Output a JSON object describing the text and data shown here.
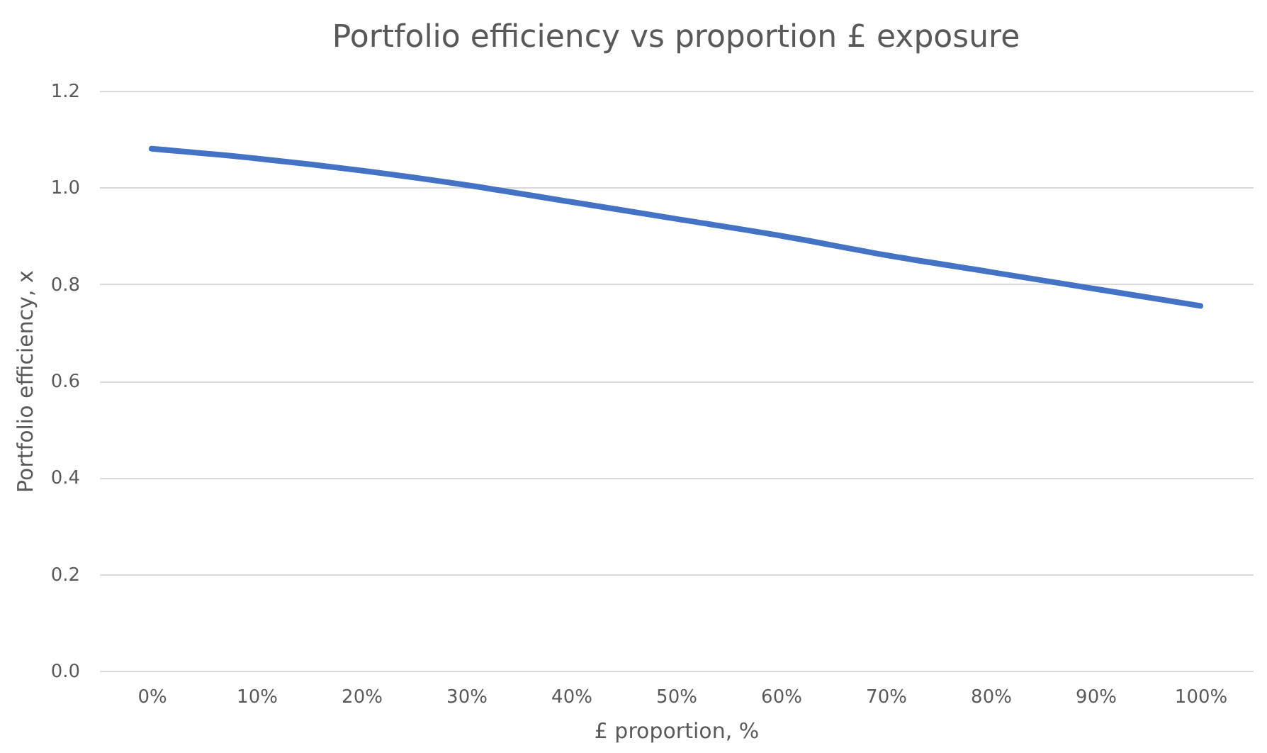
{
  "chart_data": {
    "type": "line",
    "title": "Portfolio efficiency vs proportion £ exposure",
    "xlabel": "£ proportion, %",
    "ylabel": "Portfolio efficiency, x",
    "categories": [
      "0%",
      "10%",
      "20%",
      "30%",
      "40%",
      "50%",
      "60%",
      "70%",
      "80%",
      "90%",
      "100%"
    ],
    "series": [
      {
        "color": "#4472c4",
        "values": [
          1.08,
          1.06,
          1.035,
          1.005,
          0.97,
          0.935,
          0.9,
          0.86,
          0.825,
          0.79,
          0.755
        ]
      }
    ],
    "ylim": [
      0,
      1.2
    ],
    "yticks": [
      {
        "value": 0,
        "label": "0.0"
      },
      {
        "value": 0.2,
        "label": "0.2"
      },
      {
        "value": 0.4,
        "label": "0.4"
      },
      {
        "value": 0.6,
        "label": "0.6"
      },
      {
        "value": 0.8,
        "label": "0.8"
      },
      {
        "value": 1,
        "label": "1.0"
      },
      {
        "value": 1.2,
        "label": "1.2"
      }
    ],
    "grid": "y",
    "marker": "none",
    "line_style": "solid"
  }
}
